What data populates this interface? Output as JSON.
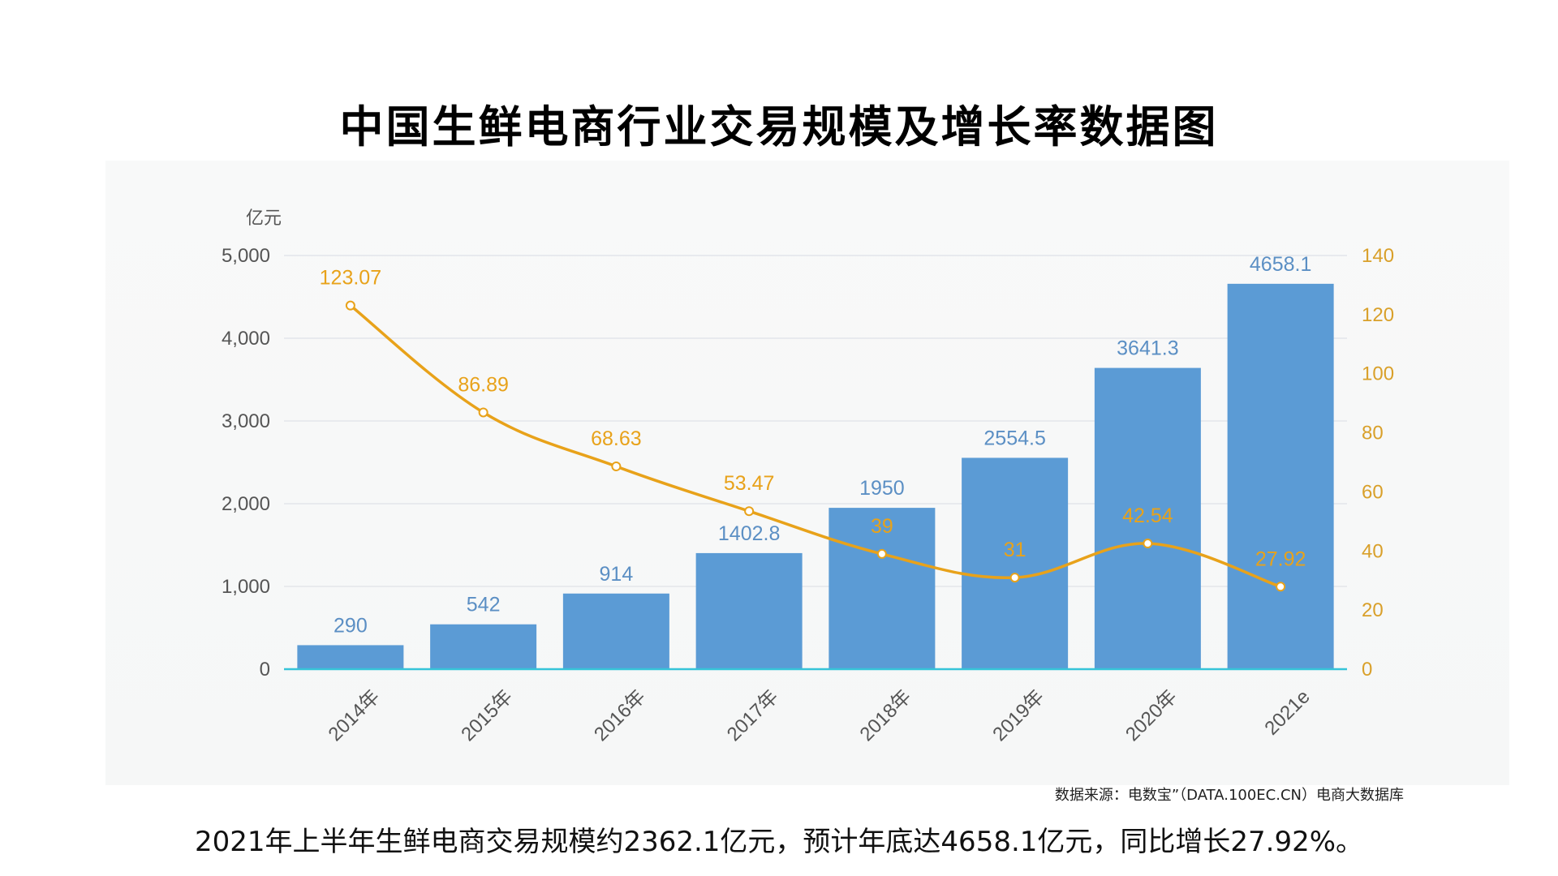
{
  "page": {
    "title": "中国生鲜电商行业交易规模及增长率数据图",
    "source": "数据来源：电数宝”（DATA.100EC.CN）电商大数据库",
    "summary": "2021年上半年生鲜电商交易规模约2362.1亿元，预计年底达4658.1亿元，同比增长27.92%。"
  },
  "chart_data": {
    "type": "bar",
    "categories": [
      "2014年",
      "2015年",
      "2016年",
      "2017年",
      "2018年",
      "2019年",
      "2020年",
      "2021e"
    ],
    "series": [
      {
        "type": "bar",
        "axis": "left",
        "values": [
          290,
          542,
          914,
          1402.8,
          1950,
          2554.5,
          3641.3,
          4658.1
        ],
        "data_labels": [
          "290",
          "542",
          "914",
          "1402.8",
          "1950",
          "2554.5",
          "3641.3",
          "4658.1"
        ],
        "color": "#5b9bd5"
      },
      {
        "type": "line",
        "axis": "right",
        "values": [
          123.07,
          86.89,
          68.63,
          53.47,
          39,
          31,
          42.54,
          27.92
        ],
        "data_labels": [
          "123.07",
          "86.89",
          "68.63",
          "53.47",
          "39",
          "31",
          "42.54",
          "27.92"
        ],
        "color": "#e8a21a"
      }
    ],
    "y_left": {
      "unit": "亿元",
      "ylim": [
        0,
        5000
      ],
      "ticks": [
        0,
        1000,
        2000,
        3000,
        4000,
        5000
      ],
      "tick_labels": [
        "0",
        "1,000",
        "2,000",
        "3,000",
        "4,000",
        "5,000"
      ]
    },
    "y_right": {
      "ylim": [
        0,
        140
      ],
      "ticks": [
        0,
        20,
        40,
        60,
        80,
        100,
        120,
        140
      ],
      "tick_labels": [
        "0",
        "20",
        "40",
        "60",
        "80",
        "100",
        "120",
        "140"
      ]
    },
    "grid": true,
    "colors": {
      "bar": "#5b9bd5",
      "bar_label": "#5b8fc4",
      "line": "#e8a21a",
      "line_label": "#e8a21a",
      "axis_text": "#555555",
      "right_axis_text": "#d9a02a",
      "grid": "#e3e6ea",
      "baseline": "#36c4d8"
    }
  }
}
